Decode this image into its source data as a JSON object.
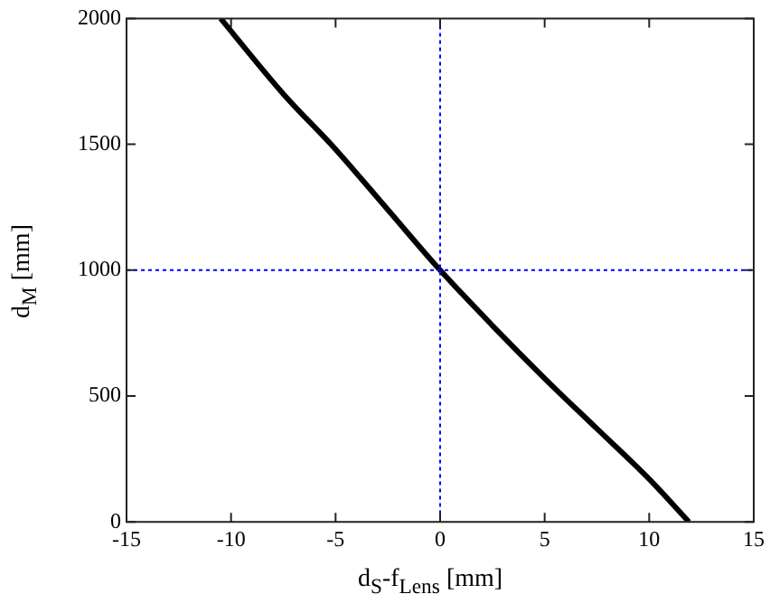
{
  "chart_data": {
    "type": "line",
    "xlabel": "d$_{S}$-f$_{Lens}$ [mm]",
    "ylabel": "d$_{M}$ [mm]",
    "series": [
      {
        "color": "#000000",
        "x": [
          -10.5,
          -7.5,
          -5,
          -2.5,
          0,
          2.5,
          5,
          7.5,
          10,
          11.9
        ],
        "values": [
          2000,
          1700,
          1480,
          1240,
          1000,
          780,
          570,
          370,
          170,
          0
        ]
      }
    ],
    "xlim": [
      -15,
      15
    ],
    "xticks": [
      -15,
      -10,
      -5,
      0,
      5,
      10,
      15
    ],
    "ylim": [
      0,
      2000
    ],
    "yticks": [
      0,
      500,
      1000,
      1500,
      2000
    ],
    "ref_lines": [
      {
        "axis": "x",
        "value": 0,
        "color": "#0000ff",
        "line_style": "dotted"
      },
      {
        "axis": "y",
        "value": 1000,
        "color": "#0000ff",
        "line_style": "dotted"
      }
    ],
    "grid": false,
    "legend": false,
    "marker": "none",
    "line_style": "solid"
  }
}
